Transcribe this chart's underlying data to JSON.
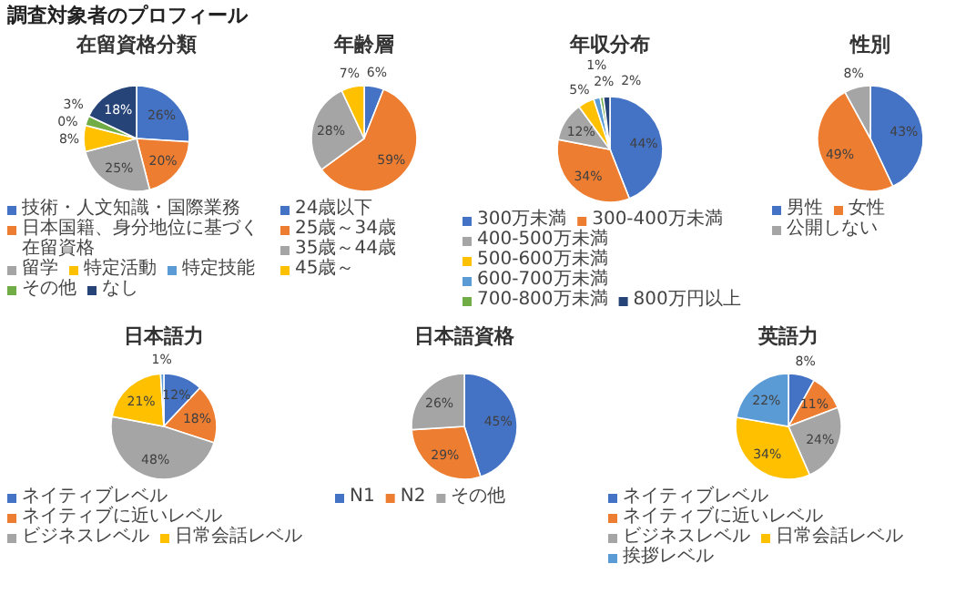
{
  "chart_data": [
    {
      "type": "other",
      "title": "調査対象者のプロフィール"
    },
    {
      "type": "pie",
      "title": "在留資格分類",
      "categories": [
        "技術・人文知識・国際業務",
        "日本国籍、身分地位に基づく在留資格",
        "留学",
        "特定活動",
        "特定技能",
        "その他",
        "なし"
      ],
      "values": [
        26,
        20,
        25,
        8,
        0,
        3,
        18
      ],
      "value_labels": [
        "26%",
        "20%",
        "25%",
        "8%",
        "0%",
        "3%",
        "18%"
      ],
      "colors": [
        "#4472c4",
        "#ed7d31",
        "#a5a5a5",
        "#ffc000",
        "#5b9bd5",
        "#70ad47",
        "#264478"
      ],
      "legend": "bottom"
    },
    {
      "type": "pie",
      "title": "年齢層",
      "categories": [
        "24歳以下",
        "25歳～34歳",
        "35歳～44歳",
        "45歳～"
      ],
      "values": [
        6,
        59,
        28,
        7
      ],
      "value_labels": [
        "6%",
        "59%",
        "28%",
        "7%"
      ],
      "colors": [
        "#4472c4",
        "#ed7d31",
        "#a5a5a5",
        "#ffc000"
      ],
      "legend": "bottom"
    },
    {
      "type": "pie",
      "title": "年収分布",
      "categories": [
        "300万未満",
        "300-400万未満",
        "400-500万未満",
        "500-600万未満",
        "600-700万未満",
        "700-800万未満",
        "800万円以上"
      ],
      "values": [
        44,
        34,
        12,
        5,
        2,
        1,
        2
      ],
      "value_labels": [
        "44%",
        "34%",
        "12%",
        "5%",
        "2%",
        "1%",
        "2%"
      ],
      "colors": [
        "#4472c4",
        "#ed7d31",
        "#a5a5a5",
        "#ffc000",
        "#5b9bd5",
        "#70ad47",
        "#264478"
      ],
      "legend": "bottom"
    },
    {
      "type": "pie",
      "title": "性別",
      "categories": [
        "男性",
        "女性",
        "公開しない"
      ],
      "values": [
        43,
        49,
        8
      ],
      "value_labels": [
        "43%",
        "49%",
        "8%"
      ],
      "colors": [
        "#4472c4",
        "#ed7d31",
        "#a5a5a5"
      ],
      "legend": "bottom"
    },
    {
      "type": "pie",
      "title": "日本語力",
      "categories": [
        "ネイティブレベル",
        "ネイティブに近いレベル",
        "ビジネスレベル",
        "日常会話レベル",
        null
      ],
      "values": [
        12,
        18,
        48,
        21,
        1
      ],
      "value_labels": [
        "12%",
        "18%",
        "48%",
        "21%",
        "1%"
      ],
      "colors": [
        "#4472c4",
        "#ed7d31",
        "#a5a5a5",
        "#ffc000",
        "#5b9bd5"
      ],
      "legend": "bottom"
    },
    {
      "type": "pie",
      "title": "日本語資格",
      "categories": [
        "N1",
        "N2",
        "その他"
      ],
      "values": [
        45,
        29,
        26
      ],
      "value_labels": [
        "45%",
        "29%",
        "26%"
      ],
      "colors": [
        "#4472c4",
        "#ed7d31",
        "#a5a5a5"
      ],
      "legend": "bottom"
    },
    {
      "type": "pie",
      "title": "英語力",
      "categories": [
        "ネイティブレベル",
        "ネイティブに近いレベル",
        "ビジネスレベル",
        "日常会話レベル",
        "挨拶レベル"
      ],
      "values": [
        8,
        11,
        24,
        34,
        22
      ],
      "value_labels": [
        "8%",
        "11%",
        "24%",
        "34%",
        "22%"
      ],
      "colors": [
        "#4472c4",
        "#ed7d31",
        "#a5a5a5",
        "#ffc000",
        "#5b9bd5"
      ],
      "legend": "bottom"
    }
  ]
}
